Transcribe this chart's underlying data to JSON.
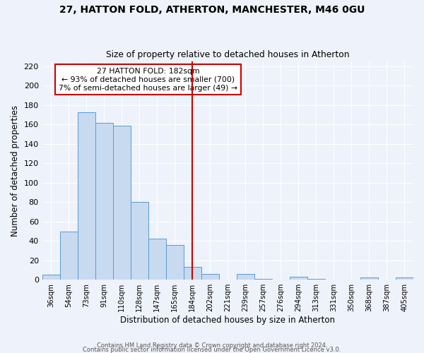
{
  "title1": "27, HATTON FOLD, ATHERTON, MANCHESTER, M46 0GU",
  "title2": "Size of property relative to detached houses in Atherton",
  "xlabel": "Distribution of detached houses by size in Atherton",
  "ylabel": "Number of detached properties",
  "bar_labels": [
    "36sqm",
    "54sqm",
    "73sqm",
    "91sqm",
    "110sqm",
    "128sqm",
    "147sqm",
    "165sqm",
    "184sqm",
    "202sqm",
    "221sqm",
    "239sqm",
    "257sqm",
    "276sqm",
    "294sqm",
    "313sqm",
    "331sqm",
    "350sqm",
    "368sqm",
    "387sqm",
    "405sqm"
  ],
  "bar_values": [
    5,
    50,
    173,
    162,
    159,
    80,
    42,
    36,
    13,
    6,
    0,
    6,
    1,
    0,
    3,
    1,
    0,
    0,
    2,
    0,
    2
  ],
  "bar_color": "#c8daf0",
  "bar_edge_color": "#5b9bd5",
  "vline_x_idx": 8,
  "vline_color": "#cc0000",
  "annotation_title": "27 HATTON FOLD: 182sqm",
  "annotation_line1": "← 93% of detached houses are smaller (700)",
  "annotation_line2": "7% of semi-detached houses are larger (49) →",
  "annotation_box_color": "#cc0000",
  "ylim": [
    0,
    225
  ],
  "yticks": [
    0,
    20,
    40,
    60,
    80,
    100,
    120,
    140,
    160,
    180,
    200,
    220
  ],
  "footer1": "Contains HM Land Registry data © Crown copyright and database right 2024.",
  "footer2": "Contains public sector information licensed under the Open Government Licence v3.0.",
  "bg_color": "#eef2fa",
  "grid_color": "#ffffff"
}
